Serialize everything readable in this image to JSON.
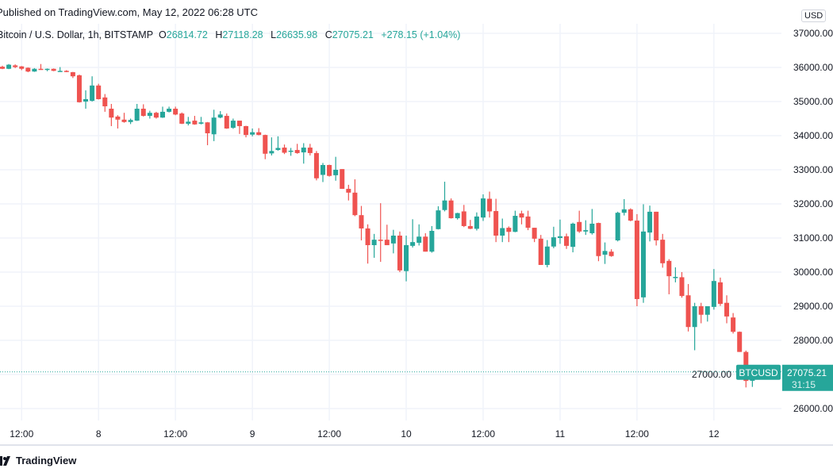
{
  "header": {
    "published": "Published on TradingView.com, May 12, 2022 06:28 UTC",
    "symbol": "Bitcoin / U.S. Dollar, 1h, BITSTAMP",
    "o_label": "O",
    "o_value": "26814.72",
    "h_label": "H",
    "h_value": "27118.28",
    "l_label": "L",
    "l_value": "26635.98",
    "c_label": "C",
    "c_value": "27075.21",
    "change": "+278.15 (+1.04%)"
  },
  "currency_button": "USD",
  "price_marker": {
    "ticker": "BTCUSD",
    "price": "27075.21",
    "countdown": "31:15"
  },
  "footer": {
    "brand": "TradingView"
  },
  "colors": {
    "up": "#26a69a",
    "down": "#ef5350",
    "grid": "#f0f3fa"
  },
  "chart_data": {
    "type": "candlestick",
    "interval": "1h",
    "y_ticks": [
      "37000.00",
      "36000.00",
      "35000.00",
      "34000.00",
      "33000.00",
      "32000.00",
      "31000.00",
      "30000.00",
      "29000.00",
      "28000.00",
      "27000.00",
      "26000.00"
    ],
    "ylim": [
      26000,
      37000
    ],
    "x_ticks": [
      "12:00",
      "8",
      "12:00",
      "9",
      "12:00",
      "10",
      "12:00",
      "11",
      "12:00",
      "12"
    ],
    "grid": true,
    "current_price": 27075.21,
    "ohlc": [
      [
        36020,
        36050,
        35950,
        35960
      ],
      [
        35960,
        36100,
        35950,
        36080
      ],
      [
        36060,
        36090,
        35980,
        36010
      ],
      [
        36030,
        36040,
        35920,
        35960
      ],
      [
        35990,
        36000,
        35860,
        35880
      ],
      [
        35880,
        35980,
        35870,
        35960
      ],
      [
        35960,
        36100,
        35930,
        35940
      ],
      [
        35950,
        35970,
        35890,
        35960
      ],
      [
        35960,
        35970,
        35890,
        35900
      ],
      [
        35890,
        36010,
        35880,
        35900
      ],
      [
        35900,
        35920,
        35860,
        35870
      ],
      [
        35860,
        35870,
        35690,
        35740
      ],
      [
        35770,
        35790,
        34970,
        34980
      ],
      [
        35000,
        35330,
        34790,
        35070
      ],
      [
        35020,
        35740,
        35000,
        35470
      ],
      [
        35470,
        35520,
        35060,
        35070
      ],
      [
        35120,
        35220,
        34700,
        34860
      ],
      [
        34790,
        34930,
        34280,
        34530
      ],
      [
        34560,
        34600,
        34210,
        34470
      ],
      [
        34470,
        34670,
        34380,
        34400
      ],
      [
        34400,
        34500,
        34340,
        34460
      ],
      [
        34440,
        34930,
        34430,
        34790
      ],
      [
        34790,
        34920,
        34560,
        34580
      ],
      [
        34580,
        34730,
        34500,
        34670
      ],
      [
        34670,
        34700,
        34500,
        34530
      ],
      [
        34530,
        34850,
        34520,
        34700
      ],
      [
        34700,
        34850,
        34680,
        34790
      ],
      [
        34790,
        34850,
        34600,
        34620
      ],
      [
        34650,
        34680,
        34340,
        34350
      ],
      [
        34350,
        34550,
        34300,
        34410
      ],
      [
        34440,
        34580,
        34320,
        34330
      ],
      [
        34350,
        34550,
        34330,
        34390
      ],
      [
        34390,
        34400,
        33720,
        34070
      ],
      [
        34040,
        34760,
        33840,
        34530
      ],
      [
        34530,
        34720,
        34510,
        34620
      ],
      [
        34580,
        34650,
        34200,
        34210
      ],
      [
        34230,
        34500,
        34200,
        34440
      ],
      [
        34440,
        34440,
        34050,
        34280
      ],
      [
        34280,
        34290,
        33950,
        34020
      ],
      [
        34030,
        34210,
        33980,
        34100
      ],
      [
        34100,
        34220,
        34010,
        34020
      ],
      [
        34020,
        34030,
        33310,
        33470
      ],
      [
        33480,
        33950,
        33420,
        33550
      ],
      [
        33580,
        33980,
        33560,
        33640
      ],
      [
        33650,
        33740,
        33460,
        33500
      ],
      [
        33530,
        33640,
        33410,
        33560
      ],
      [
        33580,
        33760,
        33470,
        33490
      ],
      [
        33510,
        33780,
        33180,
        33650
      ],
      [
        33650,
        33760,
        33420,
        33490
      ],
      [
        33490,
        33550,
        32690,
        32750
      ],
      [
        32850,
        33200,
        32640,
        33140
      ],
      [
        33140,
        33150,
        32800,
        32820
      ],
      [
        32840,
        33380,
        32680,
        33000
      ],
      [
        33020,
        33020,
        32440,
        32440
      ],
      [
        32440,
        32560,
        32100,
        32330
      ],
      [
        32330,
        32720,
        31640,
        31670
      ],
      [
        31670,
        31940,
        30930,
        31280
      ],
      [
        31280,
        31400,
        30250,
        30790
      ],
      [
        30790,
        31120,
        30420,
        30950
      ],
      [
        30950,
        32020,
        30300,
        30930
      ],
      [
        30950,
        31390,
        30790,
        30790
      ],
      [
        30840,
        31240,
        30550,
        31070
      ],
      [
        31070,
        31190,
        30000,
        30050
      ],
      [
        30030,
        31070,
        29730,
        30790
      ],
      [
        30770,
        31550,
        30720,
        30880
      ],
      [
        30860,
        31400,
        30780,
        31040
      ],
      [
        31040,
        31140,
        30600,
        30600
      ],
      [
        30600,
        31350,
        30570,
        31210
      ],
      [
        31260,
        31930,
        31250,
        31810
      ],
      [
        31820,
        32650,
        31780,
        32100
      ],
      [
        32100,
        32160,
        31570,
        31580
      ],
      [
        31580,
        31740,
        31540,
        31730
      ],
      [
        31780,
        31970,
        31320,
        31350
      ],
      [
        31350,
        31530,
        31260,
        31270
      ],
      [
        31270,
        31750,
        31220,
        31630
      ],
      [
        31600,
        32280,
        31500,
        32160
      ],
      [
        32150,
        32360,
        31600,
        31780
      ],
      [
        31790,
        32150,
        30880,
        31070
      ],
      [
        31070,
        31570,
        30880,
        31290
      ],
      [
        31300,
        31340,
        30880,
        31180
      ],
      [
        31180,
        31800,
        31170,
        31650
      ],
      [
        31720,
        31800,
        31400,
        31600
      ],
      [
        31630,
        31800,
        31230,
        31300
      ],
      [
        31300,
        31300,
        30880,
        30980
      ],
      [
        30980,
        31090,
        30210,
        30210
      ],
      [
        30210,
        30940,
        30140,
        30750
      ],
      [
        30750,
        31330,
        30700,
        31020
      ],
      [
        31000,
        31540,
        30830,
        31050
      ],
      [
        31050,
        31130,
        30680,
        30770
      ],
      [
        30740,
        31450,
        30580,
        31420
      ],
      [
        31470,
        31800,
        31150,
        31190
      ],
      [
        31190,
        31520,
        31090,
        31230
      ],
      [
        31140,
        31850,
        31100,
        31420
      ],
      [
        31440,
        31450,
        30320,
        30470
      ],
      [
        30510,
        30870,
        30240,
        30620
      ],
      [
        30600,
        30670,
        30450,
        30470
      ],
      [
        30930,
        31770,
        30900,
        31740
      ],
      [
        31740,
        32140,
        31660,
        31840
      ],
      [
        31840,
        31870,
        31490,
        31510
      ],
      [
        31510,
        31700,
        29000,
        29210
      ],
      [
        29260,
        31990,
        29100,
        31190
      ],
      [
        31160,
        31950,
        30900,
        31770
      ],
      [
        31770,
        31770,
        30780,
        30930
      ],
      [
        30950,
        31120,
        30130,
        30260
      ],
      [
        30330,
        30380,
        29350,
        29880
      ],
      [
        29850,
        30140,
        29700,
        29860
      ],
      [
        29850,
        30000,
        29250,
        29300
      ],
      [
        29320,
        29650,
        28260,
        28390
      ],
      [
        28390,
        29100,
        27710,
        29000
      ],
      [
        29000,
        29100,
        28500,
        28750
      ],
      [
        28750,
        29000,
        28550,
        29000
      ],
      [
        28980,
        30090,
        28900,
        29740
      ],
      [
        29700,
        29840,
        29010,
        29070
      ],
      [
        29100,
        29320,
        28500,
        28700
      ],
      [
        28670,
        28800,
        28200,
        28250
      ],
      [
        28250,
        28260,
        27660,
        27660
      ],
      [
        27660,
        27700,
        26620,
        26810
      ],
      [
        26814.72,
        27118.28,
        26635.98,
        27075.21
      ]
    ]
  }
}
